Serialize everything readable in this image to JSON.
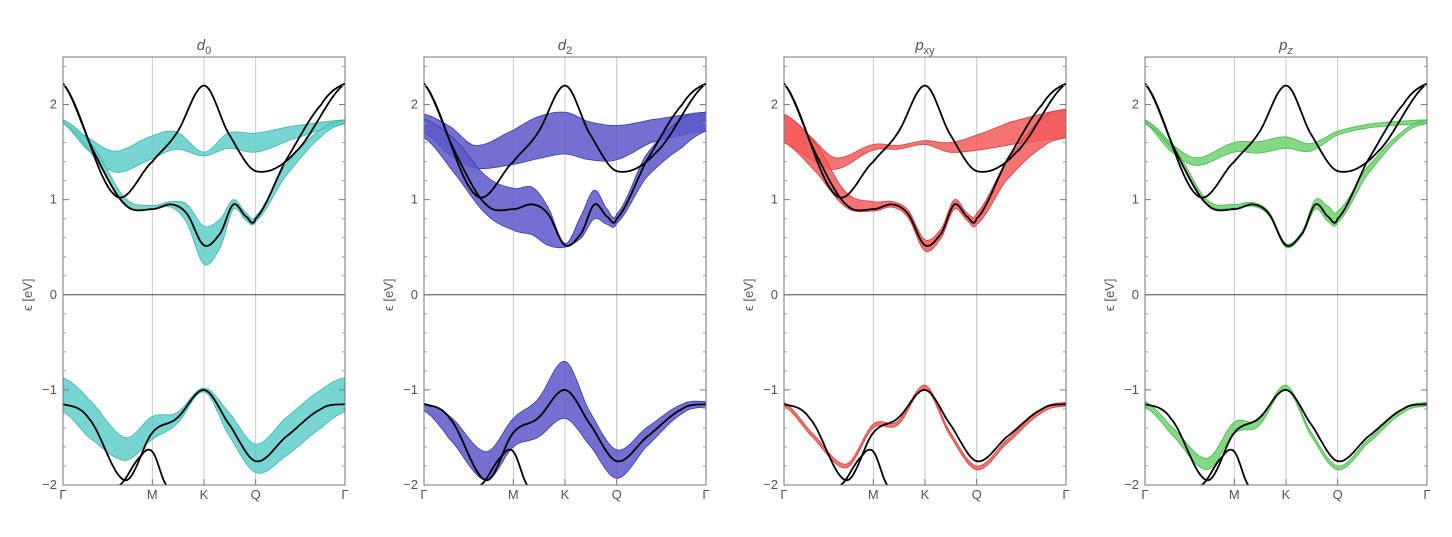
{
  "chart_data": [
    {
      "type": "line",
      "title": "d0",
      "title_base": "d",
      "title_sub": "0",
      "ylabel": "ϵ [eV]",
      "ylim": [
        -2,
        2.5
      ],
      "yticks": [
        -2,
        -1,
        0,
        1,
        2
      ],
      "ytick_labels": [
        "−2",
        "−1",
        "0",
        "1",
        "2"
      ],
      "xticks": [
        0,
        1.73,
        2.73,
        3.73,
        5.46
      ],
      "xtick_labels": [
        "Γ",
        "M",
        "K",
        "Q",
        "Γ"
      ],
      "xlim": [
        0,
        5.46
      ],
      "band_color": "#5fcfc9",
      "band_stroke": "#3fb4ae",
      "black_bands": [
        {
          "x": [
            0,
            1.0,
            1.73,
            2.2,
            2.73,
            3.2,
            3.73,
            4.5,
            5.46
          ],
          "y": [
            2.22,
            1.05,
            1.4,
            1.7,
            2.2,
            1.7,
            1.3,
            1.5,
            2.22
          ]
        },
        {
          "x": [
            0,
            0.6,
            1.2,
            1.73,
            2.1,
            2.4,
            2.73,
            3.05,
            3.3,
            3.55,
            3.73,
            4.3,
            5.0,
            5.46
          ],
          "y": [
            2.22,
            1.5,
            0.95,
            0.9,
            0.95,
            0.85,
            0.52,
            0.65,
            0.95,
            0.82,
            0.8,
            1.4,
            2.0,
            2.22
          ]
        },
        {
          "x": [
            0,
            0.5,
            1.2,
            1.73,
            2.2,
            2.73,
            3.2,
            3.73,
            4.3,
            5.0,
            5.46
          ],
          "y": [
            -1.15,
            -1.3,
            -1.95,
            -1.45,
            -1.3,
            -1.0,
            -1.35,
            -1.75,
            -1.5,
            -1.2,
            -1.15
          ]
        },
        {
          "x": [
            1.1,
            1.5,
            1.73,
            2.0
          ],
          "y": [
            -2.0,
            -1.7,
            -1.65,
            -2.0
          ]
        }
      ],
      "fat_bands": [
        {
          "x": [
            0,
            0.4,
            1.0,
            1.73,
            2.2,
            2.73,
            3.2,
            3.73,
            4.4,
            5.46
          ],
          "y": [
            1.82,
            1.62,
            1.4,
            1.55,
            1.62,
            1.48,
            1.62,
            1.6,
            1.7,
            1.82
          ],
          "w": [
            0.02,
            0.06,
            0.11,
            0.12,
            0.09,
            0.02,
            0.08,
            0.1,
            0.07,
            0.02
          ]
        },
        {
          "x": [
            0,
            0.6,
            1.2,
            1.73,
            2.1,
            2.4,
            2.73,
            3.05,
            3.3,
            3.55,
            3.73,
            4.3,
            5.0,
            5.46
          ],
          "y": [
            1.82,
            1.5,
            0.98,
            0.92,
            0.95,
            0.85,
            0.52,
            0.65,
            0.95,
            0.82,
            0.8,
            1.3,
            1.7,
            1.82
          ],
          "w": [
            0.02,
            0.05,
            0.04,
            0.02,
            0.03,
            0.1,
            0.2,
            0.15,
            0.05,
            0.04,
            0.03,
            0.06,
            0.04,
            0.02
          ]
        },
        {
          "x": [
            0,
            0.5,
            1.2,
            1.73,
            2.2,
            2.73,
            3.2,
            3.73,
            4.3,
            5.0,
            5.46
          ],
          "y": [
            -1.05,
            -1.3,
            -1.62,
            -1.4,
            -1.3,
            -1.0,
            -1.35,
            -1.72,
            -1.5,
            -1.2,
            -1.05
          ],
          "w": [
            0.18,
            0.2,
            0.12,
            0.12,
            0.06,
            0.02,
            0.12,
            0.15,
            0.2,
            0.2,
            0.18
          ]
        }
      ]
    },
    {
      "type": "line",
      "title": "d2",
      "title_base": "d",
      "title_sub": "2",
      "ylabel": "ϵ [eV]",
      "ylim": [
        -2,
        2.5
      ],
      "yticks": [
        -2,
        -1,
        0,
        1,
        2
      ],
      "ytick_labels": [
        "−2",
        "−1",
        "0",
        "1",
        "2"
      ],
      "xticks": [
        0,
        1.73,
        2.73,
        3.73,
        5.46
      ],
      "xtick_labels": [
        "Γ",
        "M",
        "K",
        "Q",
        "Γ"
      ],
      "xlim": [
        0,
        5.46
      ],
      "band_color": "#5a57c9",
      "band_stroke": "#3a37b0",
      "black_bands": [
        {
          "x": [
            0,
            1.0,
            1.73,
            2.2,
            2.73,
            3.2,
            3.73,
            4.5,
            5.46
          ],
          "y": [
            2.22,
            1.05,
            1.4,
            1.7,
            2.2,
            1.7,
            1.3,
            1.5,
            2.22
          ]
        },
        {
          "x": [
            0,
            0.6,
            1.2,
            1.73,
            2.1,
            2.4,
            2.73,
            3.05,
            3.3,
            3.55,
            3.73,
            4.3,
            5.0,
            5.46
          ],
          "y": [
            2.22,
            1.5,
            0.95,
            0.9,
            0.95,
            0.85,
            0.52,
            0.65,
            0.95,
            0.82,
            0.8,
            1.4,
            2.0,
            2.22
          ]
        },
        {
          "x": [
            0,
            0.5,
            1.2,
            1.73,
            2.2,
            2.73,
            3.2,
            3.73,
            4.3,
            5.0,
            5.46
          ],
          "y": [
            -1.15,
            -1.3,
            -1.95,
            -1.45,
            -1.3,
            -1.0,
            -1.35,
            -1.75,
            -1.5,
            -1.2,
            -1.15
          ]
        },
        {
          "x": [
            1.1,
            1.5,
            1.73,
            2.0
          ],
          "y": [
            -2.0,
            -1.7,
            -1.65,
            -2.0
          ]
        }
      ],
      "fat_bands": [
        {
          "x": [
            0,
            0.5,
            1.0,
            1.73,
            2.2,
            2.73,
            3.2,
            3.73,
            4.4,
            5.46
          ],
          "y": [
            1.8,
            1.62,
            1.45,
            1.55,
            1.65,
            1.7,
            1.62,
            1.6,
            1.72,
            1.82
          ],
          "w": [
            0.1,
            0.15,
            0.12,
            0.18,
            0.22,
            0.22,
            0.2,
            0.18,
            0.12,
            0.1
          ]
        },
        {
          "x": [
            0,
            0.6,
            1.2,
            1.73,
            2.1,
            2.4,
            2.73,
            3.05,
            3.3,
            3.55,
            3.73,
            4.3,
            5.0,
            5.46
          ],
          "y": [
            1.75,
            1.45,
            1.05,
            0.9,
            0.88,
            0.72,
            0.52,
            0.72,
            0.95,
            0.82,
            0.8,
            1.35,
            1.7,
            1.82
          ],
          "w": [
            0.1,
            0.18,
            0.2,
            0.22,
            0.25,
            0.2,
            0.02,
            0.12,
            0.15,
            0.08,
            0.05,
            0.12,
            0.15,
            0.1
          ]
        },
        {
          "x": [
            0,
            0.5,
            1.2,
            1.73,
            2.2,
            2.73,
            3.2,
            3.73,
            4.3,
            5.0,
            5.46
          ],
          "y": [
            -1.18,
            -1.4,
            -1.8,
            -1.45,
            -1.3,
            -1.0,
            -1.4,
            -1.78,
            -1.5,
            -1.2,
            -1.15
          ],
          "w": [
            0.04,
            0.12,
            0.15,
            0.15,
            0.2,
            0.3,
            0.18,
            0.15,
            0.1,
            0.05,
            0.03
          ]
        }
      ]
    },
    {
      "type": "line",
      "title": "pxy",
      "title_base": "p",
      "title_sub": "xy",
      "ylabel": "ϵ [eV]",
      "ylim": [
        -2,
        2.5
      ],
      "yticks": [
        -2,
        -1,
        0,
        1,
        2
      ],
      "ytick_labels": [
        "−2",
        "−1",
        "0",
        "1",
        "2"
      ],
      "xticks": [
        0,
        1.73,
        2.73,
        3.73,
        5.46
      ],
      "xtick_labels": [
        "Γ",
        "M",
        "K",
        "Q",
        "Γ"
      ],
      "xlim": [
        0,
        5.46
      ],
      "band_color": "#f25b5b",
      "band_stroke": "#e03a3a",
      "black_bands": [
        {
          "x": [
            0,
            1.0,
            1.73,
            2.2,
            2.73,
            3.2,
            3.73,
            4.5,
            5.46
          ],
          "y": [
            2.22,
            1.05,
            1.4,
            1.7,
            2.2,
            1.7,
            1.3,
            1.5,
            2.22
          ]
        },
        {
          "x": [
            0,
            0.6,
            1.2,
            1.73,
            2.1,
            2.4,
            2.73,
            3.05,
            3.3,
            3.55,
            3.73,
            4.3,
            5.0,
            5.46
          ],
          "y": [
            2.22,
            1.5,
            0.95,
            0.9,
            0.95,
            0.85,
            0.52,
            0.65,
            0.95,
            0.82,
            0.8,
            1.4,
            2.0,
            2.22
          ]
        },
        {
          "x": [
            0,
            0.5,
            1.2,
            1.73,
            2.2,
            2.73,
            3.2,
            3.73,
            4.3,
            5.0,
            5.46
          ],
          "y": [
            -1.15,
            -1.3,
            -1.95,
            -1.45,
            -1.3,
            -1.0,
            -1.35,
            -1.75,
            -1.5,
            -1.2,
            -1.15
          ]
        },
        {
          "x": [
            1.1,
            1.5,
            1.73,
            2.0
          ],
          "y": [
            -2.0,
            -1.7,
            -1.65,
            -2.0
          ]
        }
      ],
      "fat_bands": [
        {
          "x": [
            0,
            0.5,
            1.0,
            1.73,
            2.2,
            2.73,
            3.2,
            3.73,
            4.4,
            5.46
          ],
          "y": [
            1.75,
            1.55,
            1.38,
            1.55,
            1.55,
            1.6,
            1.55,
            1.6,
            1.7,
            1.8
          ],
          "w": [
            0.15,
            0.12,
            0.06,
            0.03,
            0.02,
            0.02,
            0.05,
            0.08,
            0.12,
            0.15
          ]
        },
        {
          "x": [
            0,
            0.6,
            1.2,
            1.73,
            2.1,
            2.4,
            2.73,
            3.05,
            3.3,
            3.55,
            3.73,
            4.3,
            5.0,
            5.46
          ],
          "y": [
            1.75,
            1.45,
            1.0,
            0.93,
            0.95,
            0.85,
            0.52,
            0.65,
            0.95,
            0.82,
            0.8,
            1.3,
            1.7,
            1.8
          ],
          "w": [
            0.15,
            0.15,
            0.08,
            0.05,
            0.03,
            0.04,
            0.06,
            0.05,
            0.05,
            0.04,
            0.06,
            0.1,
            0.15,
            0.15
          ]
        },
        {
          "x": [
            0,
            0.5,
            1.2,
            1.73,
            2.2,
            2.73,
            3.2,
            3.73,
            4.3,
            5.0,
            5.46
          ],
          "y": [
            -1.15,
            -1.45,
            -1.8,
            -1.38,
            -1.35,
            -0.97,
            -1.45,
            -1.82,
            -1.55,
            -1.22,
            -1.15
          ],
          "w": [
            0.02,
            0.02,
            0.02,
            0.02,
            0.02,
            0.02,
            0.02,
            0.02,
            0.02,
            0.02,
            0.02
          ]
        }
      ]
    },
    {
      "type": "line",
      "title": "pz",
      "title_base": "p",
      "title_sub": "z",
      "ylabel": "ϵ [eV]",
      "ylim": [
        -2,
        2.5
      ],
      "yticks": [
        -2,
        -1,
        0,
        1,
        2
      ],
      "ytick_labels": [
        "−2",
        "−1",
        "0",
        "1",
        "2"
      ],
      "xticks": [
        0,
        1.73,
        2.73,
        3.73,
        5.46
      ],
      "xtick_labels": [
        "Γ",
        "M",
        "K",
        "Q",
        "Γ"
      ],
      "xlim": [
        0,
        5.46
      ],
      "band_color": "#6fd36f",
      "band_stroke": "#46b846",
      "black_bands": [
        {
          "x": [
            0,
            1.0,
            1.73,
            2.2,
            2.73,
            3.2,
            3.73,
            4.5,
            5.46
          ],
          "y": [
            2.22,
            1.05,
            1.4,
            1.7,
            2.2,
            1.7,
            1.3,
            1.5,
            2.22
          ]
        },
        {
          "x": [
            0,
            0.6,
            1.2,
            1.73,
            2.1,
            2.4,
            2.73,
            3.05,
            3.3,
            3.55,
            3.73,
            4.3,
            5.0,
            5.46
          ],
          "y": [
            2.22,
            1.5,
            0.95,
            0.9,
            0.95,
            0.85,
            0.52,
            0.65,
            0.95,
            0.82,
            0.8,
            1.4,
            2.0,
            2.22
          ]
        },
        {
          "x": [
            0,
            0.5,
            1.2,
            1.73,
            2.2,
            2.73,
            3.2,
            3.73,
            4.3,
            5.0,
            5.46
          ],
          "y": [
            -1.15,
            -1.3,
            -1.95,
            -1.45,
            -1.3,
            -1.0,
            -1.35,
            -1.75,
            -1.5,
            -1.2,
            -1.15
          ]
        },
        {
          "x": [
            1.1,
            1.5,
            1.73,
            2.0
          ],
          "y": [
            -2.0,
            -1.7,
            -1.65,
            -2.0
          ]
        }
      ],
      "fat_bands": [
        {
          "x": [
            0,
            0.5,
            1.0,
            1.73,
            2.2,
            2.73,
            3.2,
            3.73,
            4.4,
            5.46
          ],
          "y": [
            1.82,
            1.55,
            1.4,
            1.55,
            1.55,
            1.6,
            1.55,
            1.7,
            1.78,
            1.82
          ],
          "w": [
            0.02,
            0.04,
            0.04,
            0.05,
            0.06,
            0.06,
            0.04,
            0.02,
            0.02,
            0.02
          ]
        },
        {
          "x": [
            0,
            0.6,
            1.2,
            1.73,
            2.1,
            2.4,
            2.73,
            3.05,
            3.3,
            3.55,
            3.73,
            4.3,
            5.0,
            5.46
          ],
          "y": [
            1.82,
            1.5,
            0.98,
            0.93,
            0.95,
            0.85,
            0.52,
            0.65,
            0.95,
            0.85,
            0.82,
            1.3,
            1.7,
            1.82
          ],
          "w": [
            0.02,
            0.02,
            0.02,
            0.02,
            0.02,
            0.02,
            0.02,
            0.02,
            0.05,
            0.08,
            0.06,
            0.04,
            0.02,
            0.02
          ]
        },
        {
          "x": [
            0,
            0.5,
            1.2,
            1.73,
            2.2,
            2.73,
            3.2,
            3.73,
            4.3,
            5.0,
            5.46
          ],
          "y": [
            -1.15,
            -1.42,
            -1.78,
            -1.4,
            -1.35,
            -0.97,
            -1.45,
            -1.82,
            -1.55,
            -1.22,
            -1.15
          ],
          "w": [
            0.03,
            0.04,
            0.06,
            0.06,
            0.03,
            0.02,
            0.02,
            0.02,
            0.02,
            0.02,
            0.02
          ]
        }
      ]
    }
  ]
}
